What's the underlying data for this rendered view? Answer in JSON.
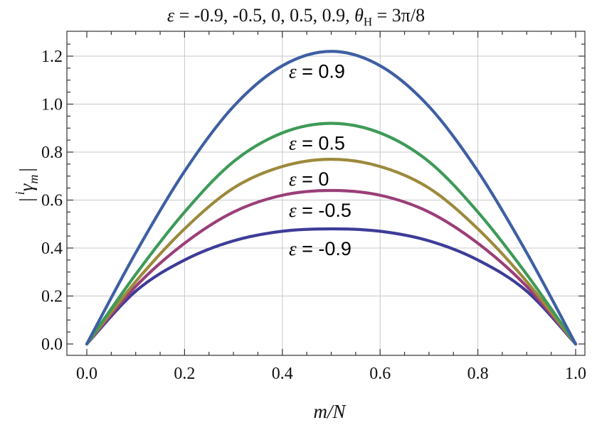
{
  "chart_data": {
    "type": "line",
    "title": {
      "epsilon_symbol": "ε",
      "epsilon_values": " = -0.9, -0.5, 0, 0.5, 0.9, ",
      "theta_symbol": "θ",
      "theta_subscript": "H",
      "theta_value": " = 3π/8"
    },
    "xlabel": "m/N",
    "ylabel": {
      "left_bar": "|",
      "superscript": "i",
      "symbol": "γ",
      "subscript": "m",
      "right_bar": "|"
    },
    "xlim": [
      0,
      1
    ],
    "ylim": [
      0,
      1.25
    ],
    "x_ticks": [
      "0.0",
      "0.2",
      "0.4",
      "0.6",
      "0.8",
      "1.0"
    ],
    "y_ticks": [
      "0.0",
      "0.2",
      "0.4",
      "0.6",
      "0.8",
      "1.0",
      "1.2"
    ],
    "x_tick_values": [
      0,
      0.2,
      0.4,
      0.6,
      0.8,
      1.0
    ],
    "y_tick_values": [
      0,
      0.2,
      0.4,
      0.6,
      0.8,
      1.0,
      1.2
    ],
    "grid": true,
    "series": [
      {
        "name": "ε = 0.9",
        "label_symbol": "ε",
        "label_value": " = 0.9",
        "peak": 1.22,
        "color": "#3e5fa3",
        "x": [
          0,
          0.1,
          0.2,
          0.3,
          0.4,
          0.5,
          0.6,
          0.7,
          0.8,
          0.9,
          1.0
        ],
        "y": [
          0,
          0.38,
          0.72,
          0.99,
          1.16,
          1.22,
          1.16,
          0.99,
          0.72,
          0.38,
          0
        ]
      },
      {
        "name": "ε = 0.5",
        "label_symbol": "ε",
        "label_value": " = 0.5",
        "peak": 0.92,
        "color": "#3e9a58",
        "x": [
          0,
          0.1,
          0.2,
          0.3,
          0.4,
          0.5,
          0.6,
          0.7,
          0.8,
          0.9,
          1.0
        ],
        "y": [
          0,
          0.29,
          0.55,
          0.76,
          0.88,
          0.92,
          0.88,
          0.76,
          0.55,
          0.29,
          0
        ]
      },
      {
        "name": "ε = 0",
        "label_symbol": "ε",
        "label_value": " = 0",
        "peak": 0.77,
        "color": "#9c8a3c",
        "x": [
          0,
          0.1,
          0.2,
          0.3,
          0.4,
          0.5,
          0.6,
          0.7,
          0.8,
          0.9,
          1.0
        ],
        "y": [
          0,
          0.26,
          0.48,
          0.65,
          0.74,
          0.77,
          0.74,
          0.65,
          0.48,
          0.26,
          0
        ]
      },
      {
        "name": "ε = -0.5",
        "label_symbol": "ε",
        "label_value": " = -0.5",
        "peak": 0.64,
        "color": "#9a3f78",
        "x": [
          0,
          0.1,
          0.2,
          0.3,
          0.4,
          0.5,
          0.6,
          0.7,
          0.8,
          0.9,
          1.0
        ],
        "y": [
          0,
          0.24,
          0.42,
          0.55,
          0.62,
          0.64,
          0.62,
          0.55,
          0.42,
          0.24,
          0
        ]
      },
      {
        "name": "ε = -0.9",
        "label_symbol": "ε",
        "label_value": " = -0.9",
        "peak": 0.48,
        "color": "#3e3c98",
        "x": [
          0,
          0.1,
          0.2,
          0.3,
          0.4,
          0.5,
          0.6,
          0.7,
          0.8,
          0.9,
          1.0
        ],
        "y": [
          0,
          0.22,
          0.35,
          0.43,
          0.47,
          0.48,
          0.47,
          0.43,
          0.35,
          0.22,
          0
        ]
      }
    ]
  }
}
